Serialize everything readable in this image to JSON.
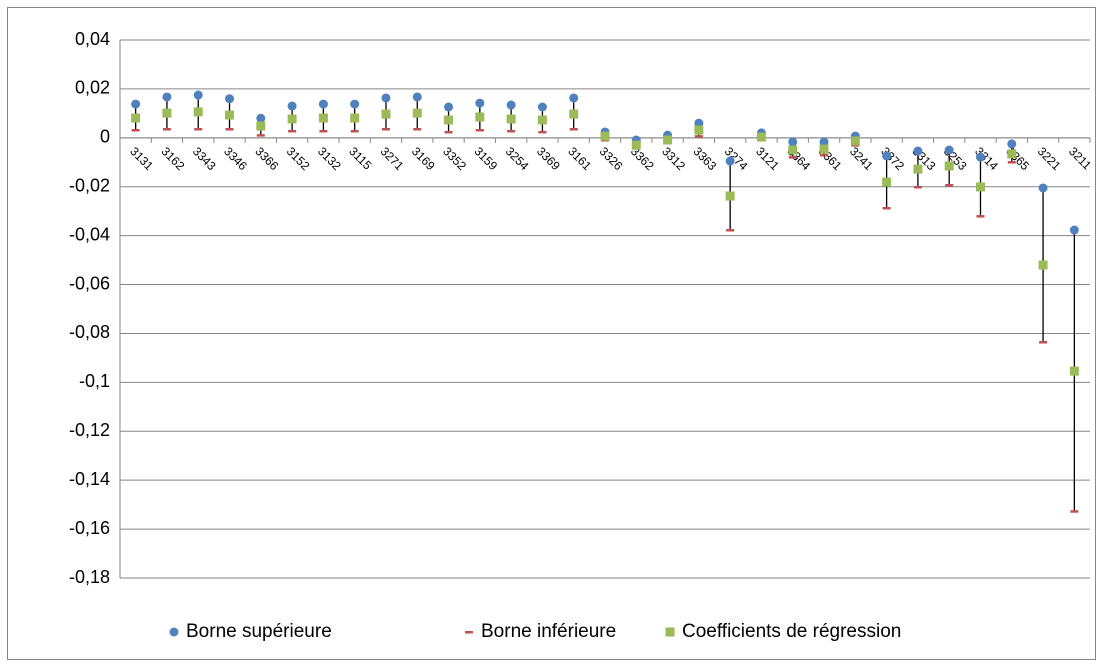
{
  "chart_data": {
    "type": "range",
    "categories": [
      "3131",
      "3162",
      "3343",
      "3346",
      "3366",
      "3152",
      "3132",
      "3115",
      "3271",
      "3169",
      "3352",
      "3159",
      "3254",
      "3369",
      "3161",
      "3326",
      "3362",
      "3312",
      "3363",
      "3274",
      "3121",
      "3364",
      "3361",
      "3241",
      "3372",
      "3313",
      "3253",
      "3314",
      "3365",
      "3221",
      "3211"
    ],
    "series": [
      {
        "name": "Borne supérieure",
        "color": "#4f81bd",
        "marker": "circle",
        "values": [
          0.0138,
          0.0167,
          0.0175,
          0.016,
          0.008,
          0.013,
          0.0138,
          0.0138,
          0.0163,
          0.0167,
          0.0126,
          0.0142,
          0.0134,
          0.0126,
          0.0163,
          0.0024,
          -0.0009,
          0.0011,
          0.006,
          -0.0095,
          0.002,
          -0.0017,
          -0.0017,
          0.0007,
          -0.0074,
          -0.0054,
          -0.005,
          -0.0079,
          -0.0025,
          -0.0205,
          -0.0377
        ]
      },
      {
        "name": "Borne inférieure",
        "color": "#c0504d",
        "marker": "dash",
        "values": [
          0.0032,
          0.0036,
          0.0036,
          0.0036,
          0.0011,
          0.0028,
          0.0028,
          0.0028,
          0.0036,
          0.0036,
          0.0024,
          0.0032,
          0.0028,
          0.0024,
          0.0036,
          -0.0009,
          -0.0042,
          -0.0017,
          0.0007,
          -0.0377,
          0,
          -0.0079,
          -0.007,
          -0.003,
          -0.0287,
          -0.0201,
          -0.0193,
          -0.032,
          -0.0099,
          -0.0835,
          -0.1527
        ]
      },
      {
        "name": "Coefficients de régression",
        "color": "#9bbb59",
        "marker": "square",
        "values": [
          0.0081,
          0.0101,
          0.0106,
          0.0093,
          0.0048,
          0.0077,
          0.0081,
          0.0081,
          0.0097,
          0.0101,
          0.0073,
          0.0085,
          0.0077,
          0.0073,
          0.0097,
          0.0007,
          -0.003,
          -0.0009,
          0.0032,
          -0.0238,
          0.0003,
          -0.005,
          -0.0046,
          -0.0013,
          -0.0181,
          -0.0128,
          -0.0115,
          -0.0201,
          -0.0066,
          -0.052,
          -0.0954
        ]
      }
    ],
    "ylim": [
      -0.18,
      0.04
    ],
    "yticks": [
      {
        "value": -0.18,
        "label": "-0,18"
      },
      {
        "value": -0.16,
        "label": "-0,16"
      },
      {
        "value": -0.14,
        "label": "-0,14"
      },
      {
        "value": -0.12,
        "label": "-0,12"
      },
      {
        "value": -0.1,
        "label": "-0,1"
      },
      {
        "value": -0.08,
        "label": "-0,08"
      },
      {
        "value": -0.06,
        "label": "-0,06"
      },
      {
        "value": -0.04,
        "label": "-0,04"
      },
      {
        "value": -0.02,
        "label": "-0,02"
      },
      0,
      {
        "value": 0.02,
        "label": "0,02"
      },
      {
        "value": 0.04,
        "label": "0,04"
      }
    ],
    "grid": true,
    "legend": "bottom"
  }
}
